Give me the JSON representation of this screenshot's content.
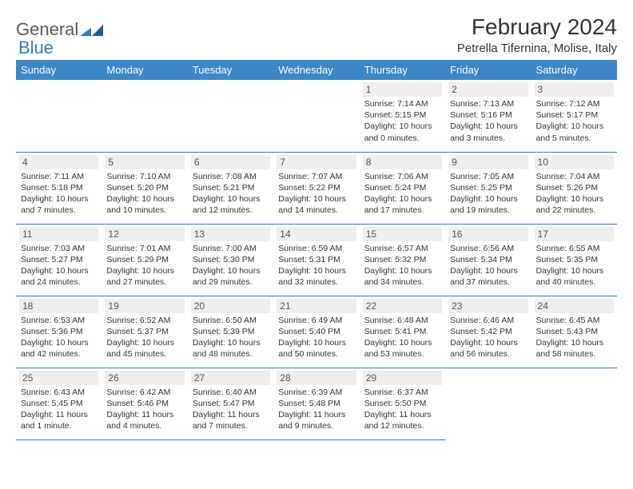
{
  "brand": {
    "part1": "General",
    "part2": "Blue"
  },
  "title": "February 2024",
  "location": "Petrella Tifernina, Molise, Italy",
  "weekdays": [
    "Sunday",
    "Monday",
    "Tuesday",
    "Wednesday",
    "Thursday",
    "Friday",
    "Saturday"
  ],
  "colors": {
    "headerBg": "#3b87c8",
    "accent": "#2f7ac0",
    "dayBg": "#eeeeee",
    "text": "#333333",
    "page": "#ffffff"
  },
  "grid": [
    [
      null,
      null,
      null,
      null,
      {
        "n": "1",
        "sr": "7:14 AM",
        "ss": "5:15 PM",
        "dl": "10 hours and 0 minutes."
      },
      {
        "n": "2",
        "sr": "7:13 AM",
        "ss": "5:16 PM",
        "dl": "10 hours and 3 minutes."
      },
      {
        "n": "3",
        "sr": "7:12 AM",
        "ss": "5:17 PM",
        "dl": "10 hours and 5 minutes."
      }
    ],
    [
      {
        "n": "4",
        "sr": "7:11 AM",
        "ss": "5:18 PM",
        "dl": "10 hours and 7 minutes."
      },
      {
        "n": "5",
        "sr": "7:10 AM",
        "ss": "5:20 PM",
        "dl": "10 hours and 10 minutes."
      },
      {
        "n": "6",
        "sr": "7:08 AM",
        "ss": "5:21 PM",
        "dl": "10 hours and 12 minutes."
      },
      {
        "n": "7",
        "sr": "7:07 AM",
        "ss": "5:22 PM",
        "dl": "10 hours and 14 minutes."
      },
      {
        "n": "8",
        "sr": "7:06 AM",
        "ss": "5:24 PM",
        "dl": "10 hours and 17 minutes."
      },
      {
        "n": "9",
        "sr": "7:05 AM",
        "ss": "5:25 PM",
        "dl": "10 hours and 19 minutes."
      },
      {
        "n": "10",
        "sr": "7:04 AM",
        "ss": "5:26 PM",
        "dl": "10 hours and 22 minutes."
      }
    ],
    [
      {
        "n": "11",
        "sr": "7:03 AM",
        "ss": "5:27 PM",
        "dl": "10 hours and 24 minutes."
      },
      {
        "n": "12",
        "sr": "7:01 AM",
        "ss": "5:29 PM",
        "dl": "10 hours and 27 minutes."
      },
      {
        "n": "13",
        "sr": "7:00 AM",
        "ss": "5:30 PM",
        "dl": "10 hours and 29 minutes."
      },
      {
        "n": "14",
        "sr": "6:59 AM",
        "ss": "5:31 PM",
        "dl": "10 hours and 32 minutes."
      },
      {
        "n": "15",
        "sr": "6:57 AM",
        "ss": "5:32 PM",
        "dl": "10 hours and 34 minutes."
      },
      {
        "n": "16",
        "sr": "6:56 AM",
        "ss": "5:34 PM",
        "dl": "10 hours and 37 minutes."
      },
      {
        "n": "17",
        "sr": "6:55 AM",
        "ss": "5:35 PM",
        "dl": "10 hours and 40 minutes."
      }
    ],
    [
      {
        "n": "18",
        "sr": "6:53 AM",
        "ss": "5:36 PM",
        "dl": "10 hours and 42 minutes."
      },
      {
        "n": "19",
        "sr": "6:52 AM",
        "ss": "5:37 PM",
        "dl": "10 hours and 45 minutes."
      },
      {
        "n": "20",
        "sr": "6:50 AM",
        "ss": "5:39 PM",
        "dl": "10 hours and 48 minutes."
      },
      {
        "n": "21",
        "sr": "6:49 AM",
        "ss": "5:40 PM",
        "dl": "10 hours and 50 minutes."
      },
      {
        "n": "22",
        "sr": "6:48 AM",
        "ss": "5:41 PM",
        "dl": "10 hours and 53 minutes."
      },
      {
        "n": "23",
        "sr": "6:46 AM",
        "ss": "5:42 PM",
        "dl": "10 hours and 56 minutes."
      },
      {
        "n": "24",
        "sr": "6:45 AM",
        "ss": "5:43 PM",
        "dl": "10 hours and 58 minutes."
      }
    ],
    [
      {
        "n": "25",
        "sr": "6:43 AM",
        "ss": "5:45 PM",
        "dl": "11 hours and 1 minute."
      },
      {
        "n": "26",
        "sr": "6:42 AM",
        "ss": "5:46 PM",
        "dl": "11 hours and 4 minutes."
      },
      {
        "n": "27",
        "sr": "6:40 AM",
        "ss": "5:47 PM",
        "dl": "11 hours and 7 minutes."
      },
      {
        "n": "28",
        "sr": "6:39 AM",
        "ss": "5:48 PM",
        "dl": "11 hours and 9 minutes."
      },
      {
        "n": "29",
        "sr": "6:37 AM",
        "ss": "5:50 PM",
        "dl": "11 hours and 12 minutes."
      },
      null,
      null
    ]
  ],
  "labels": {
    "sunrise": "Sunrise: ",
    "sunset": "Sunset: ",
    "daylight": "Daylight: "
  }
}
